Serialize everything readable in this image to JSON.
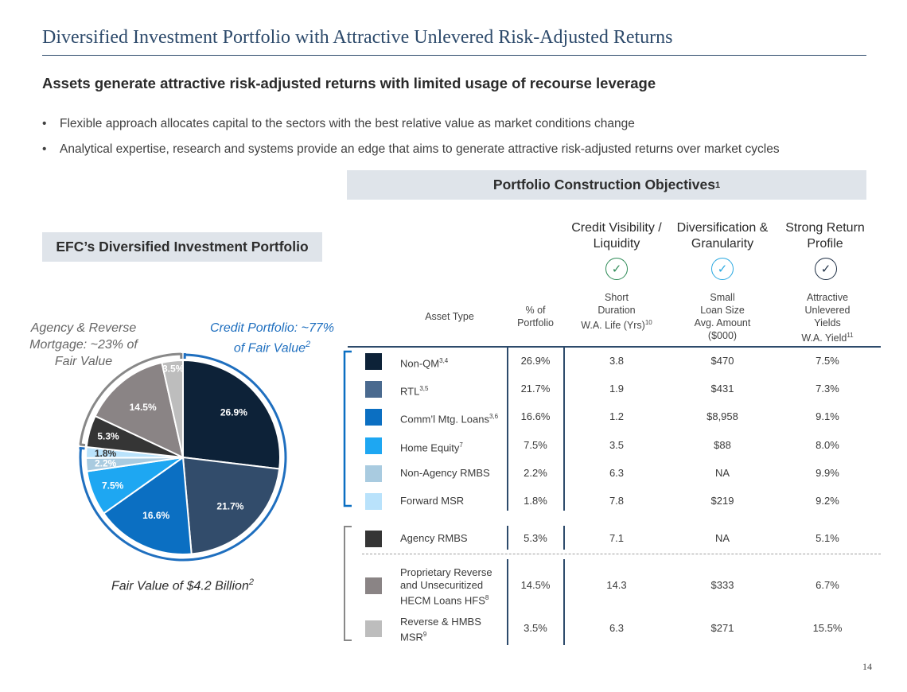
{
  "header": {
    "title": "Diversified Investment Portfolio with Attractive Unlevered Risk-Adjusted Returns",
    "subtitle": "Assets generate attractive risk-adjusted returns with limited usage of recourse leverage",
    "bullets": [
      "Flexible approach allocates capital to the sectors with the best relative value as market conditions change",
      "Analytical expertise, research and systems provide an edge that aims to generate attractive risk-adjusted returns over market cycles"
    ]
  },
  "objectives_box": {
    "label": "Portfolio Construction Objectives",
    "footnote": "1"
  },
  "portfolio_box": {
    "label": "EFC’s Diversified Investment Portfolio"
  },
  "objectives": [
    {
      "line1": "Credit Visibility /",
      "line2": "Liquidity",
      "check_color": "#2e8b57",
      "icon": "check-circle-icon",
      "metric": [
        "Short",
        "Duration",
        "W.A. Life (Yrs)"
      ],
      "metric_sup": "10"
    },
    {
      "line1": "Diversification &",
      "line2": "Granularity",
      "check_color": "#29a8e0",
      "icon": "check-circle-icon",
      "metric": [
        "Small",
        "Loan Size",
        "Avg. Amount",
        "($000)"
      ],
      "metric_sup": ""
    },
    {
      "line1": "Strong Return",
      "line2": "Profile",
      "check_color": "#1e2f45",
      "icon": "check-circle-icon",
      "metric": [
        "Attractive",
        "Unlevered",
        "Yields",
        "W.A. Yield"
      ],
      "metric_sup": "11"
    }
  ],
  "table": {
    "headers": {
      "asset_type": "Asset Type",
      "pct_line1": "% of",
      "pct_line2": "Portfolio"
    },
    "rows": [
      {
        "color": "#0d2238",
        "asset": "Non-QM",
        "sup": "3,4",
        "pct": "26.9%",
        "life": "3.8",
        "loan": "$470",
        "yield": "7.5%"
      },
      {
        "color": "#4a6a8f",
        "asset": "RTL",
        "sup": "3,5",
        "pct": "21.7%",
        "life": "1.9",
        "loan": "$431",
        "yield": "7.3%"
      },
      {
        "color": "#0b6fc2",
        "asset": "Comm’l Mtg. Loans",
        "sup": "3,6",
        "pct": "16.6%",
        "life": "1.2",
        "loan": "$8,958",
        "yield": "9.1%"
      },
      {
        "color": "#1ea7f2",
        "asset": "Home Equity",
        "sup": "7",
        "pct": "7.5%",
        "life": "3.5",
        "loan": "$88",
        "yield": "8.0%"
      },
      {
        "color": "#a9cbe0",
        "asset": "Non-Agency RMBS",
        "sup": "",
        "pct": "2.2%",
        "life": "6.3",
        "loan": "NA",
        "yield": "9.9%"
      },
      {
        "color": "#b9e2fb",
        "asset": "Forward MSR",
        "sup": "",
        "pct": "1.8%",
        "life": "7.8",
        "loan": "$219",
        "yield": "9.2%"
      },
      {
        "color": "#353535",
        "asset": "Agency RMBS",
        "sup": "",
        "pct": "5.3%",
        "life": "7.1",
        "loan": "NA",
        "yield": "5.1%"
      },
      {
        "color": "#8a8485",
        "asset": "Proprietary Reverse and Unsecuritized HECM Loans HFS",
        "asset_lines": [
          "Proprietary Reverse",
          "and Unsecuritized",
          "HECM Loans HFS"
        ],
        "sup": "8",
        "pct": "14.5%",
        "life": "14.3",
        "loan": "$333",
        "yield": "6.7%"
      },
      {
        "color": "#bdbdbd",
        "asset": "Reverse & HMBS MSR",
        "asset_lines": [
          "Reverse & HMBS",
          "MSR"
        ],
        "sup": "9",
        "pct": "3.5%",
        "life": "6.3",
        "loan": "$271",
        "yield": "15.5%"
      }
    ]
  },
  "chart_data": {
    "type": "pie",
    "categories": [
      "Non-QM",
      "RTL",
      "Comm’l Mtg. Loans",
      "Home Equity",
      "Non-Agency RMBS",
      "Forward MSR",
      "Agency RMBS",
      "Proprietary Reverse and Unsecuritized HECM Loans HFS",
      "Reverse & HMBS MSR"
    ],
    "values": [
      26.9,
      21.7,
      16.6,
      7.5,
      2.2,
      1.8,
      5.3,
      14.5,
      3.5
    ],
    "labels": [
      "26.9%",
      "21.7%",
      "16.6%",
      "7.5%",
      "2.2%",
      "1.8%",
      "5.3%",
      "14.5%",
      "3.5%"
    ],
    "colors": [
      "#0d2238",
      "#324c6b",
      "#0b6fc2",
      "#1ea7f2",
      "#a9cbe0",
      "#b9e2fb",
      "#353535",
      "#8a8485",
      "#bdbdbd"
    ],
    "label_colors": [
      "#ffffff",
      "#ffffff",
      "#ffffff",
      "#ffffff",
      "#ffffff",
      "#333333",
      "#ffffff",
      "#ffffff",
      "#ffffff"
    ],
    "groups": [
      {
        "label": "Credit Portfolio: ~77% of Fair Value",
        "footnote": "2",
        "color": "#1f6fbf"
      },
      {
        "label": "Agency & Reverse Mortgage: ~23% of Fair Value",
        "color": "#888888"
      }
    ],
    "caption": "Fair Value of $4.2 Billion",
    "caption_footnote": "2"
  },
  "page_number": "14"
}
